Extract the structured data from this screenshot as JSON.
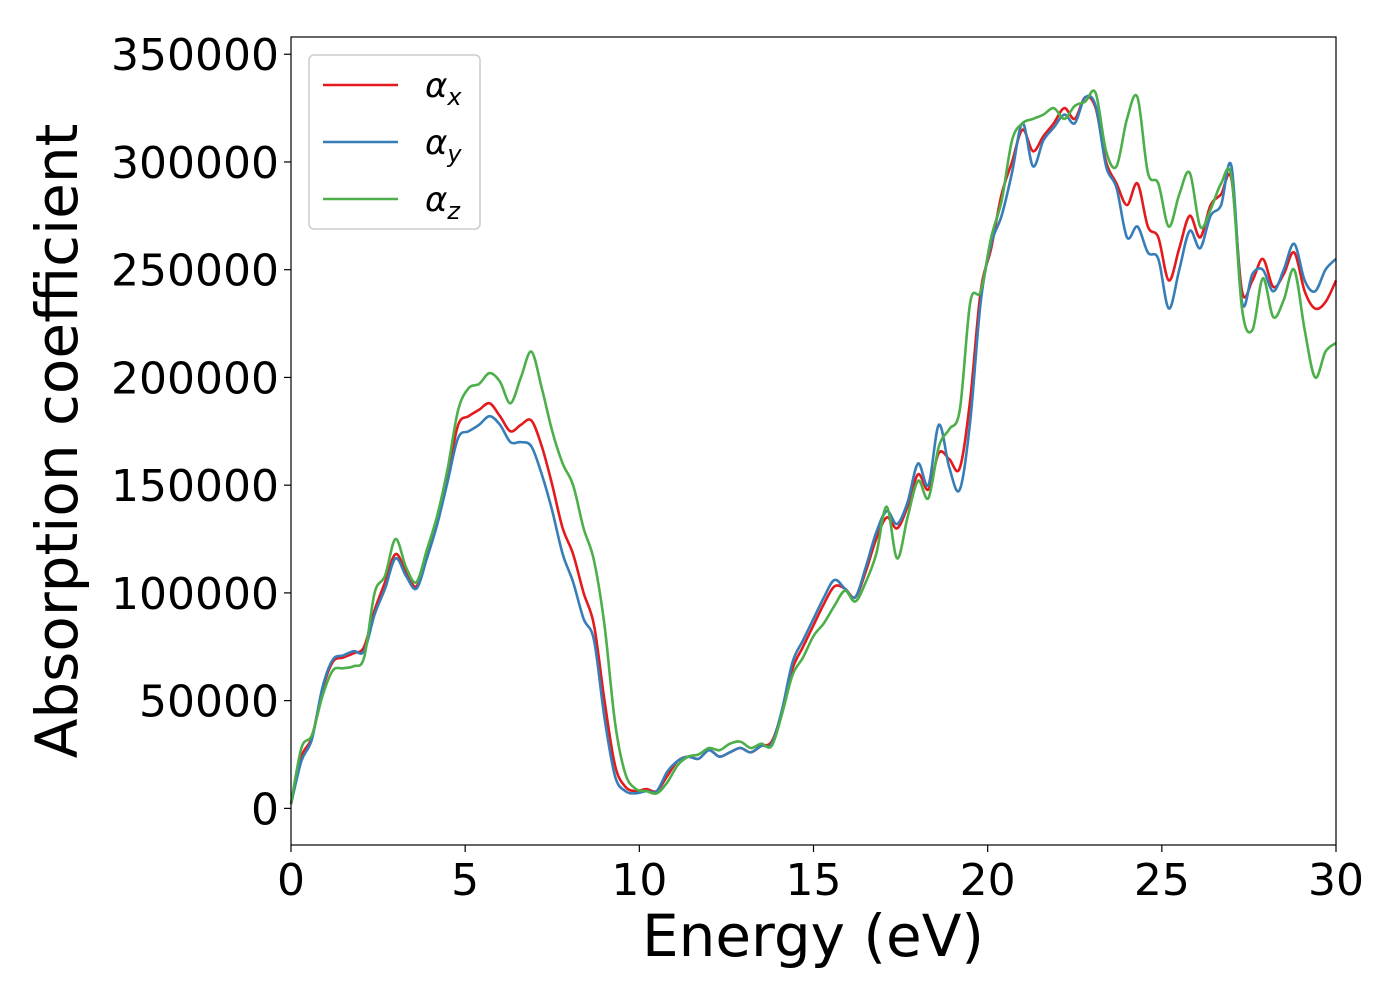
{
  "chart_data": {
    "type": "line",
    "title": "",
    "xlabel": "Energy (eV)",
    "ylabel": "Absorption coefficient",
    "xlim": [
      0,
      30
    ],
    "ylim": [
      -17000,
      358000
    ],
    "xticks": [
      0,
      5,
      10,
      15,
      20,
      25,
      30
    ],
    "yticks": [
      0,
      50000,
      100000,
      150000,
      200000,
      250000,
      300000,
      350000
    ],
    "xtick_labels": [
      "0",
      "5",
      "10",
      "15",
      "20",
      "25",
      "30"
    ],
    "ytick_labels": [
      "0",
      "50000",
      "100000",
      "150000",
      "200000",
      "250000",
      "300000",
      "350000"
    ],
    "grid": false,
    "legend_position": "top-left",
    "series": [
      {
        "name": "α",
        "subscript": "x",
        "color": "#e41a1c",
        "x": [
          0,
          0.3,
          0.6,
          0.9,
          1.2,
          1.5,
          1.8,
          2.1,
          2.4,
          2.7,
          3.0,
          3.3,
          3.6,
          3.9,
          4.2,
          4.5,
          4.8,
          5.1,
          5.4,
          5.7,
          6.0,
          6.3,
          6.6,
          6.9,
          7.2,
          7.5,
          7.8,
          8.1,
          8.4,
          8.7,
          9.0,
          9.3,
          9.6,
          9.9,
          10.2,
          10.5,
          10.8,
          11.1,
          11.4,
          11.7,
          12.0,
          12.3,
          12.6,
          12.9,
          13.2,
          13.5,
          13.8,
          14.1,
          14.4,
          14.7,
          15.0,
          15.3,
          15.6,
          15.9,
          16.2,
          16.5,
          16.8,
          17.1,
          17.4,
          17.7,
          18.0,
          18.3,
          18.6,
          18.9,
          19.2,
          19.5,
          19.8,
          20.1,
          20.4,
          20.7,
          21.0,
          21.3,
          21.6,
          21.9,
          22.2,
          22.5,
          22.8,
          23.1,
          23.4,
          23.7,
          24.0,
          24.3,
          24.6,
          24.9,
          25.2,
          25.5,
          25.8,
          26.1,
          26.4,
          26.7,
          27.0,
          27.3,
          27.6,
          27.9,
          28.2,
          28.5,
          28.8,
          29.1,
          29.4,
          29.7,
          30.0
        ],
        "values": [
          2000,
          24000,
          33000,
          55000,
          68000,
          70000,
          72000,
          75000,
          92000,
          105000,
          118000,
          110000,
          103000,
          118000,
          135000,
          155000,
          178000,
          182000,
          185000,
          188000,
          182000,
          175000,
          178000,
          180000,
          168000,
          150000,
          130000,
          118000,
          100000,
          85000,
          50000,
          20000,
          10000,
          8000,
          9000,
          8000,
          15000,
          22000,
          24000,
          23000,
          27000,
          24000,
          26000,
          28000,
          26000,
          29000,
          31000,
          45000,
          65000,
          75000,
          85000,
          95000,
          103000,
          102000,
          98000,
          110000,
          125000,
          135000,
          130000,
          140000,
          155000,
          148000,
          165000,
          162000,
          158000,
          190000,
          240000,
          260000,
          285000,
          300000,
          315000,
          305000,
          312000,
          318000,
          325000,
          320000,
          330000,
          325000,
          300000,
          290000,
          280000,
          290000,
          270000,
          265000,
          245000,
          260000,
          275000,
          265000,
          280000,
          285000,
          292000,
          240000,
          245000,
          255000,
          242000,
          248000,
          258000,
          240000,
          232000,
          235000,
          245000
        ]
      },
      {
        "name": "α",
        "subscript": "y",
        "color": "#377eb8",
        "x": [
          0,
          0.3,
          0.6,
          0.9,
          1.2,
          1.5,
          1.8,
          2.1,
          2.4,
          2.7,
          3.0,
          3.3,
          3.6,
          3.9,
          4.2,
          4.5,
          4.8,
          5.1,
          5.4,
          5.7,
          6.0,
          6.3,
          6.6,
          6.9,
          7.2,
          7.5,
          7.8,
          8.1,
          8.4,
          8.7,
          9.0,
          9.3,
          9.6,
          9.9,
          10.2,
          10.5,
          10.8,
          11.1,
          11.4,
          11.7,
          12.0,
          12.3,
          12.6,
          12.9,
          13.2,
          13.5,
          13.8,
          14.1,
          14.4,
          14.7,
          15.0,
          15.3,
          15.6,
          15.9,
          16.2,
          16.5,
          16.8,
          17.1,
          17.4,
          17.7,
          18.0,
          18.3,
          18.6,
          18.9,
          19.2,
          19.5,
          19.8,
          20.1,
          20.4,
          20.7,
          21.0,
          21.3,
          21.6,
          21.9,
          22.2,
          22.5,
          22.8,
          23.1,
          23.4,
          23.7,
          24.0,
          24.3,
          24.6,
          24.9,
          25.2,
          25.5,
          25.8,
          26.1,
          26.4,
          26.7,
          27.0,
          27.3,
          27.6,
          27.9,
          28.2,
          28.5,
          28.8,
          29.1,
          29.4,
          29.7,
          30.0
        ],
        "values": [
          2000,
          22000,
          32000,
          56000,
          69000,
          71000,
          73000,
          73000,
          90000,
          102000,
          116000,
          108000,
          102000,
          116000,
          132000,
          152000,
          172000,
          175000,
          178000,
          182000,
          178000,
          170000,
          170000,
          168000,
          155000,
          138000,
          118000,
          105000,
          88000,
          78000,
          42000,
          15000,
          8000,
          7000,
          8000,
          8000,
          17000,
          22000,
          24000,
          23000,
          27000,
          24000,
          26000,
          28000,
          26000,
          29000,
          30000,
          46000,
          68000,
          78000,
          88000,
          98000,
          106000,
          102000,
          98000,
          112000,
          128000,
          138000,
          132000,
          142000,
          160000,
          150000,
          178000,
          158000,
          148000,
          180000,
          235000,
          262000,
          275000,
          295000,
          318000,
          298000,
          310000,
          316000,
          322000,
          318000,
          330000,
          326000,
          298000,
          288000,
          265000,
          270000,
          258000,
          255000,
          232000,
          250000,
          268000,
          260000,
          275000,
          280000,
          298000,
          235000,
          248000,
          250000,
          240000,
          250000,
          262000,
          245000,
          240000,
          250000,
          255000
        ]
      },
      {
        "name": "α",
        "subscript": "z",
        "color": "#4daf4a",
        "x": [
          0,
          0.3,
          0.6,
          0.9,
          1.2,
          1.5,
          1.8,
          2.1,
          2.4,
          2.7,
          3.0,
          3.3,
          3.6,
          3.9,
          4.2,
          4.5,
          4.8,
          5.1,
          5.4,
          5.7,
          6.0,
          6.3,
          6.6,
          6.9,
          7.2,
          7.5,
          7.8,
          8.1,
          8.4,
          8.7,
          9.0,
          9.3,
          9.6,
          9.9,
          10.2,
          10.5,
          10.8,
          11.1,
          11.4,
          11.7,
          12.0,
          12.3,
          12.6,
          12.9,
          13.2,
          13.5,
          13.8,
          14.1,
          14.4,
          14.7,
          15.0,
          15.3,
          15.6,
          15.9,
          16.2,
          16.5,
          16.8,
          17.1,
          17.4,
          17.7,
          18.0,
          18.3,
          18.6,
          18.9,
          19.2,
          19.5,
          19.8,
          20.1,
          20.4,
          20.7,
          21.0,
          21.3,
          21.6,
          21.9,
          22.2,
          22.5,
          22.8,
          23.1,
          23.4,
          23.7,
          24.0,
          24.3,
          24.6,
          24.9,
          25.2,
          25.5,
          25.8,
          26.1,
          26.4,
          26.7,
          27.0,
          27.3,
          27.6,
          27.9,
          28.2,
          28.5,
          28.8,
          29.1,
          29.4,
          29.7,
          30.0
        ],
        "values": [
          2000,
          28000,
          34000,
          52000,
          64000,
          65000,
          66000,
          70000,
          100000,
          108000,
          125000,
          112000,
          105000,
          120000,
          136000,
          158000,
          185000,
          195000,
          197000,
          202000,
          198000,
          188000,
          200000,
          212000,
          195000,
          175000,
          160000,
          150000,
          130000,
          115000,
          85000,
          40000,
          16000,
          9000,
          8000,
          7000,
          12000,
          20000,
          24000,
          25000,
          28000,
          27000,
          30000,
          31000,
          28000,
          30000,
          29000,
          44000,
          62000,
          70000,
          80000,
          86000,
          94000,
          101000,
          96000,
          105000,
          118000,
          140000,
          116000,
          135000,
          152000,
          144000,
          168000,
          176000,
          185000,
          235000,
          240000,
          265000,
          282000,
          310000,
          318000,
          320000,
          322000,
          325000,
          320000,
          326000,
          328000,
          332000,
          305000,
          298000,
          320000,
          330000,
          295000,
          290000,
          270000,
          285000,
          295000,
          270000,
          278000,
          290000,
          293000,
          232000,
          222000,
          246000,
          228000,
          236000,
          250000,
          222000,
          200000,
          212000,
          216000
        ]
      }
    ]
  }
}
